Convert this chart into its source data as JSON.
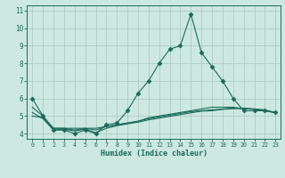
{
  "xlabel": "Humidex (Indice chaleur)",
  "x_values": [
    0,
    1,
    2,
    3,
    4,
    5,
    6,
    7,
    8,
    9,
    10,
    11,
    12,
    13,
    14,
    15,
    16,
    17,
    18,
    19,
    20,
    21,
    22,
    23
  ],
  "line1": [
    6.0,
    5.0,
    4.2,
    4.2,
    4.0,
    4.2,
    4.0,
    4.5,
    4.6,
    5.3,
    6.3,
    7.0,
    8.0,
    8.8,
    9.0,
    10.8,
    8.6,
    7.8,
    7.0,
    6.0,
    5.3,
    5.3,
    5.3,
    5.2
  ],
  "line2": [
    5.0,
    4.9,
    4.3,
    4.3,
    4.2,
    4.3,
    4.2,
    4.4,
    4.5,
    4.6,
    4.7,
    4.85,
    4.95,
    5.05,
    5.15,
    5.25,
    5.3,
    5.35,
    5.4,
    5.45,
    5.45,
    5.4,
    5.35,
    5.2
  ],
  "line3": [
    5.2,
    4.85,
    4.2,
    4.25,
    4.15,
    4.25,
    4.05,
    4.3,
    4.45,
    4.55,
    4.65,
    4.78,
    4.88,
    4.98,
    5.08,
    5.18,
    5.28,
    5.3,
    5.38,
    5.42,
    5.42,
    5.38,
    5.3,
    5.18
  ],
  "line4": [
    5.5,
    5.0,
    4.3,
    4.3,
    4.3,
    4.3,
    4.3,
    4.4,
    4.5,
    4.6,
    4.7,
    4.9,
    5.0,
    5.1,
    5.2,
    5.3,
    5.4,
    5.5,
    5.5,
    5.5,
    5.4,
    5.4,
    5.3,
    5.2
  ],
  "bg_color": "#cce8e0",
  "grid_color": "#aaccc4",
  "line_color": "#1a6a5a",
  "xlim": [
    -0.5,
    23.5
  ],
  "ylim": [
    3.7,
    11.3
  ],
  "yticks": [
    4,
    5,
    6,
    7,
    8,
    9,
    10,
    11
  ],
  "xticks": [
    0,
    1,
    2,
    3,
    4,
    5,
    6,
    7,
    8,
    9,
    10,
    11,
    12,
    13,
    14,
    15,
    16,
    17,
    18,
    19,
    20,
    21,
    22,
    23
  ]
}
